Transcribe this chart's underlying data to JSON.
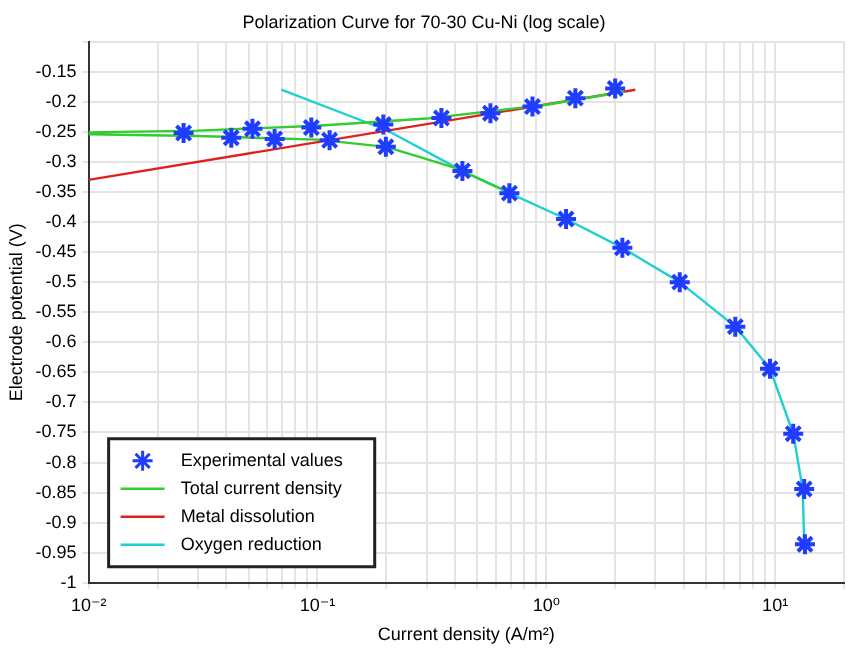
{
  "chart_data": {
    "type": "line",
    "title": "Polarization Curve for 70-30 Cu-Ni (log scale)",
    "xlabel": "Current density (A/m²)",
    "ylabel": "Electrode potential (V)",
    "log": "x",
    "grid": true,
    "legend": "bottom left",
    "xlim": [
      0.01,
      20
    ],
    "xticks": [
      {
        "value": 0.01,
        "label": "10⁻²"
      },
      {
        "value": 0.02,
        "label": null
      },
      {
        "value": 0.03,
        "label": null
      },
      {
        "value": 0.04,
        "label": null
      },
      {
        "value": 0.05,
        "label": null
      },
      {
        "value": 0.06,
        "label": null
      },
      {
        "value": 0.07,
        "label": null
      },
      {
        "value": 0.08,
        "label": null
      },
      {
        "value": 0.09,
        "label": null
      },
      {
        "value": 0.1,
        "label": "10⁻¹"
      },
      {
        "value": 0.2,
        "label": null
      },
      {
        "value": 0.3,
        "label": null
      },
      {
        "value": 0.4,
        "label": null
      },
      {
        "value": 0.5,
        "label": null
      },
      {
        "value": 0.6,
        "label": null
      },
      {
        "value": 0.7,
        "label": null
      },
      {
        "value": 0.8,
        "label": null
      },
      {
        "value": 0.9,
        "label": null
      },
      {
        "value": 1,
        "label": "10⁰"
      },
      {
        "value": 2,
        "label": null
      },
      {
        "value": 3,
        "label": null
      },
      {
        "value": 4,
        "label": null
      },
      {
        "value": 5,
        "label": null
      },
      {
        "value": 6,
        "label": null
      },
      {
        "value": 7,
        "label": null
      },
      {
        "value": 8,
        "label": null
      },
      {
        "value": 9,
        "label": null
      },
      {
        "value": 10,
        "label": "10¹"
      },
      {
        "value": 20,
        "label": null
      }
    ],
    "ylim": [
      -1,
      -0.1
    ],
    "yticks": [
      -1,
      -0.95,
      -0.9,
      -0.85,
      -0.8,
      -0.75,
      -0.7,
      -0.65,
      -0.6,
      -0.55,
      -0.5,
      -0.45,
      -0.4,
      -0.35,
      -0.3,
      -0.25,
      -0.2,
      -0.15,
      {
        "value": -0.1,
        "label": null
      }
    ],
    "series": [
      {
        "type": "scatter",
        "name": "Experimental values",
        "color": "#1f3cff",
        "marker": "cross",
        "x": [
          0.026,
          0.042,
          0.052,
          0.065,
          0.094,
          0.113,
          0.194,
          0.199,
          0.348,
          0.43,
          0.57,
          0.69,
          0.87,
          1.22,
          1.34,
          2.0,
          2.15,
          3.83,
          6.7,
          9.5,
          12.0,
          13.4,
          13.5
        ],
        "values": [
          -0.252,
          -0.26,
          -0.245,
          -0.262,
          -0.243,
          -0.264,
          -0.238,
          -0.275,
          -0.227,
          -0.315,
          -0.219,
          -0.352,
          -0.208,
          -0.395,
          -0.194,
          -0.178,
          -0.443,
          -0.5,
          -0.574,
          -0.644,
          -0.752,
          -0.844,
          -0.936
        ]
      },
      {
        "type": "line",
        "name": "Total current density",
        "color": "#33cc33",
        "x": [
          2.2,
          1.0,
          0.3,
          0.1,
          0.03,
          0.01,
          0.01,
          0.03,
          0.1,
          0.2,
          0.4,
          0.7
        ],
        "values": [
          -0.183,
          -0.205,
          -0.228,
          -0.24,
          -0.248,
          -0.251,
          -0.254,
          -0.257,
          -0.263,
          -0.275,
          -0.31,
          -0.352
        ]
      },
      {
        "type": "line",
        "name": "Metal dissolution",
        "color": "#e02020",
        "x": [
          0.01,
          2.45
        ],
        "values": [
          -0.33,
          -0.18
        ]
      },
      {
        "type": "line",
        "name": "Oxygen reduction",
        "color": "#20d0d0",
        "x": [
          0.0695,
          0.2,
          0.43,
          0.69,
          1.22,
          2.15,
          3.83,
          6.7,
          9.5,
          12.0,
          13.2,
          13.4
        ],
        "values": [
          -0.18,
          -0.247,
          -0.315,
          -0.352,
          -0.395,
          -0.443,
          -0.5,
          -0.574,
          -0.644,
          -0.752,
          -0.844,
          -0.936
        ]
      }
    ]
  }
}
